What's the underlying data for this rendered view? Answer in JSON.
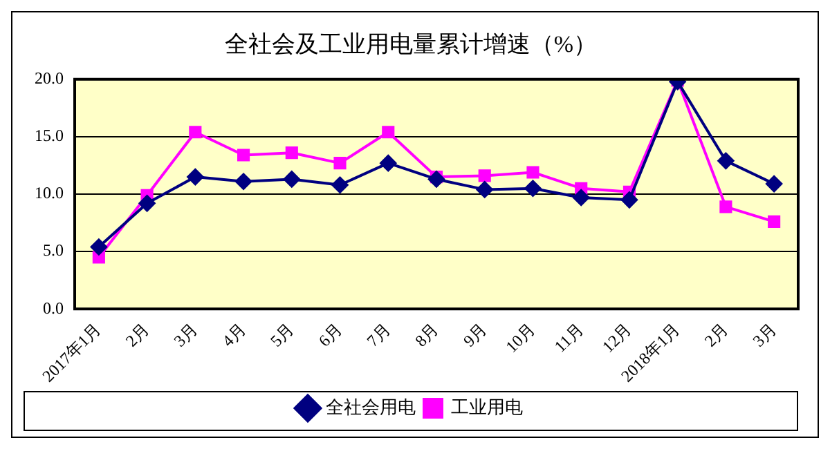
{
  "chart_data": {
    "type": "line",
    "title": "全社会及工业用电量累计增速（%）",
    "categories": [
      "2017年1月",
      "2月",
      "3月",
      "4月",
      "5月",
      "6月",
      "7月",
      "8月",
      "9月",
      "10月",
      "11月",
      "12月",
      "2018年1月",
      "2月",
      "3月"
    ],
    "series": [
      {
        "name": "全社会用电",
        "color": "#000080",
        "marker": "diamond",
        "values": [
          5.4,
          9.2,
          11.5,
          11.1,
          11.3,
          10.8,
          12.7,
          11.3,
          10.4,
          10.5,
          9.7,
          9.5,
          19.8,
          12.9,
          10.9
        ]
      },
      {
        "name": "工业用电",
        "color": "#ff00ff",
        "marker": "square",
        "values": [
          4.5,
          9.9,
          15.4,
          13.4,
          13.6,
          12.7,
          15.4,
          11.5,
          11.6,
          11.9,
          10.5,
          10.2,
          19.9,
          8.9,
          7.6
        ]
      }
    ],
    "ylim": [
      0,
      20
    ],
    "yticks": [
      {
        "value": 0,
        "label": "0.0"
      },
      {
        "value": 5,
        "label": "5.0"
      },
      {
        "value": 10,
        "label": "10.0"
      },
      {
        "value": 15,
        "label": "15.0"
      },
      {
        "value": 20,
        "label": "20.0"
      }
    ],
    "grid": "y",
    "legend": "bottom",
    "line_style": "solid"
  }
}
